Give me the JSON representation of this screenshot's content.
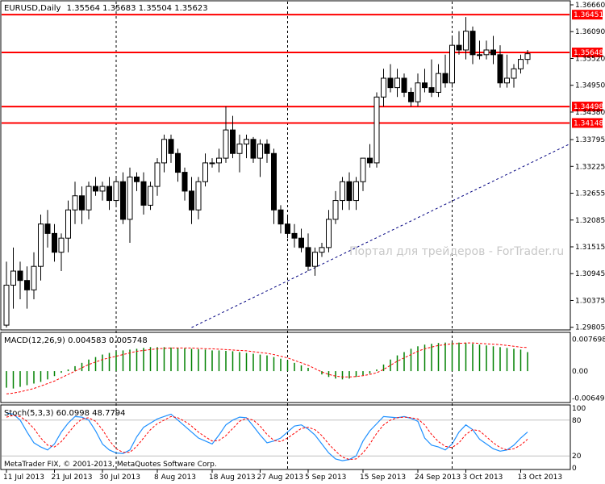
{
  "chart_data": [
    {
      "type": "candlestick",
      "symbol_header": "EURUSD,Daily",
      "ohlc_header": "1.35564 1.35683 1.35504 1.35623",
      "ylim": [
        1.298,
        1.3666
      ],
      "y_ticks": [
        "1.36660",
        "1.36090",
        "1.35520",
        "1.34950",
        "1.34380",
        "1.33795",
        "1.33225",
        "1.32655",
        "1.32085",
        "1.31515",
        "1.30945",
        "1.30375",
        "1.29805"
      ],
      "dates": [
        "11 Jul 2013",
        "21 Jul 2013",
        "30 Jul 2013",
        "8 Aug 2013",
        "18 Aug 2013",
        "27 Aug 2013",
        "5 Sep 2013",
        "15 Sep 2013",
        "24 Sep 2013",
        "3 Oct 2013",
        "13 Oct 2013"
      ],
      "levels": [
        {
          "label": "1.36451",
          "value": 1.36451
        },
        {
          "label": "1.35648",
          "value": 1.35648
        },
        {
          "label": "1.34498",
          "value": 1.34498
        },
        {
          "label": "1.34148",
          "value": 1.34148
        }
      ],
      "trendline": [
        [
          1.298,
          1.337
        ]
      ],
      "watermark": "Портал для трейдеров - ForTrader.ru",
      "candles": [
        [
          1.2985,
          1.312,
          1.298,
          1.307
        ],
        [
          1.307,
          1.315,
          1.302,
          1.31
        ],
        [
          1.31,
          1.312,
          1.304,
          1.308
        ],
        [
          1.308,
          1.311,
          1.302,
          1.306
        ],
        [
          1.306,
          1.314,
          1.304,
          1.311
        ],
        [
          1.311,
          1.322,
          1.308,
          1.32
        ],
        [
          1.32,
          1.323,
          1.315,
          1.318
        ],
        [
          1.318,
          1.32,
          1.312,
          1.314
        ],
        [
          1.314,
          1.318,
          1.31,
          1.317
        ],
        [
          1.317,
          1.325,
          1.314,
          1.323
        ],
        [
          1.323,
          1.329,
          1.32,
          1.326
        ],
        [
          1.326,
          1.328,
          1.32,
          1.323
        ],
        [
          1.323,
          1.329,
          1.321,
          1.328
        ],
        [
          1.328,
          1.33,
          1.326,
          1.327
        ],
        [
          1.327,
          1.329,
          1.325,
          1.328
        ],
        [
          1.328,
          1.33,
          1.323,
          1.325
        ],
        [
          1.325,
          1.33,
          1.324,
          1.329
        ],
        [
          1.329,
          1.331,
          1.32,
          1.321
        ],
        [
          1.321,
          1.332,
          1.316,
          1.33
        ],
        [
          1.33,
          1.331,
          1.327,
          1.329
        ],
        [
          1.329,
          1.331,
          1.322,
          1.324
        ],
        [
          1.324,
          1.329,
          1.323,
          1.328
        ],
        [
          1.328,
          1.334,
          1.326,
          1.333
        ],
        [
          1.333,
          1.339,
          1.331,
          1.338
        ],
        [
          1.338,
          1.339,
          1.333,
          1.335
        ],
        [
          1.335,
          1.336,
          1.329,
          1.331
        ],
        [
          1.331,
          1.332,
          1.325,
          1.327
        ],
        [
          1.327,
          1.33,
          1.32,
          1.323
        ],
        [
          1.323,
          1.33,
          1.321,
          1.329
        ],
        [
          1.329,
          1.335,
          1.328,
          1.333
        ],
        [
          1.333,
          1.334,
          1.332,
          1.333
        ],
        [
          1.333,
          1.336,
          1.331,
          1.334
        ],
        [
          1.334,
          1.345,
          1.333,
          1.34
        ],
        [
          1.34,
          1.343,
          1.334,
          1.335
        ],
        [
          1.335,
          1.339,
          1.331,
          1.337
        ],
        [
          1.337,
          1.339,
          1.334,
          1.338
        ],
        [
          1.338,
          1.3385,
          1.333,
          1.334
        ],
        [
          1.334,
          1.338,
          1.33,
          1.337
        ],
        [
          1.337,
          1.338,
          1.333,
          1.335
        ],
        [
          1.335,
          1.336,
          1.32,
          1.323
        ],
        [
          1.323,
          1.324,
          1.318,
          1.32
        ],
        [
          1.32,
          1.322,
          1.317,
          1.318
        ],
        [
          1.318,
          1.32,
          1.315,
          1.317
        ],
        [
          1.317,
          1.319,
          1.314,
          1.315
        ],
        [
          1.315,
          1.318,
          1.31,
          1.311
        ],
        [
          1.311,
          1.315,
          1.309,
          1.314
        ],
        [
          1.314,
          1.316,
          1.313,
          1.315
        ],
        [
          1.315,
          1.323,
          1.314,
          1.321
        ],
        [
          1.321,
          1.327,
          1.32,
          1.325
        ],
        [
          1.325,
          1.33,
          1.323,
          1.329
        ],
        [
          1.329,
          1.331,
          1.323,
          1.325
        ],
        [
          1.325,
          1.33,
          1.323,
          1.329
        ],
        [
          1.329,
          1.334,
          1.327,
          1.334
        ],
        [
          1.334,
          1.337,
          1.332,
          1.333
        ],
        [
          1.333,
          1.348,
          1.332,
          1.347
        ],
        [
          1.347,
          1.353,
          1.345,
          1.351
        ],
        [
          1.351,
          1.354,
          1.348,
          1.349
        ],
        [
          1.349,
          1.353,
          1.347,
          1.351
        ],
        [
          1.351,
          1.352,
          1.347,
          1.348
        ],
        [
          1.348,
          1.349,
          1.345,
          1.346
        ],
        [
          1.346,
          1.352,
          1.345,
          1.35
        ],
        [
          1.35,
          1.353,
          1.348,
          1.349
        ],
        [
          1.349,
          1.355,
          1.347,
          1.348
        ],
        [
          1.348,
          1.354,
          1.347,
          1.352
        ],
        [
          1.352,
          1.356,
          1.349,
          1.35
        ],
        [
          1.35,
          1.36,
          1.349,
          1.358
        ],
        [
          1.358,
          1.361,
          1.356,
          1.357
        ],
        [
          1.357,
          1.364,
          1.355,
          1.361
        ],
        [
          1.361,
          1.362,
          1.354,
          1.356
        ],
        [
          1.356,
          1.359,
          1.355,
          1.356
        ],
        [
          1.356,
          1.359,
          1.355,
          1.357
        ],
        [
          1.357,
          1.36,
          1.354,
          1.356
        ],
        [
          1.356,
          1.358,
          1.349,
          1.35
        ],
        [
          1.35,
          1.356,
          1.349,
          1.351
        ],
        [
          1.351,
          1.354,
          1.349,
          1.353
        ],
        [
          1.353,
          1.356,
          1.352,
          1.355
        ],
        [
          1.355,
          1.357,
          1.354,
          1.3562
        ]
      ]
    },
    {
      "type": "bar",
      "title": "MACD(12,26,9) 0.004583 0.005748",
      "ylim": [
        -0.007,
        0.0082
      ],
      "y_ticks": [
        "0.007698",
        "0.00",
        "-0.006497"
      ],
      "series": [
        {
          "name": "MACD",
          "values": [
            -0.004,
            -0.0042,
            -0.0038,
            -0.0034,
            -0.003,
            -0.0026,
            -0.002,
            -0.0012,
            -0.0004,
            0.0004,
            0.0012,
            0.002,
            0.0028,
            0.0034,
            0.004,
            0.0044,
            0.0048,
            0.005,
            0.0052,
            0.0054,
            0.0056,
            0.0058,
            0.0058,
            0.0058,
            0.0057,
            0.0056,
            0.0055,
            0.0054,
            0.0053,
            0.0052,
            0.005,
            0.005,
            0.0049,
            0.0048,
            0.0046,
            0.0044,
            0.0042,
            0.004,
            0.0038,
            0.0034,
            0.003,
            0.0026,
            0.002,
            0.0014,
            0.0008,
            0.0,
            -0.0008,
            -0.0014,
            -0.0018,
            -0.002,
            -0.0018,
            -0.0014,
            -0.001,
            -0.0006,
            0.0004,
            0.0016,
            0.0028,
            0.0038,
            0.0046,
            0.0054,
            0.006,
            0.0064,
            0.0066,
            0.0068,
            0.0069,
            0.0069,
            0.0069,
            0.0068,
            0.0066,
            0.0064,
            0.0062,
            0.006,
            0.0058,
            0.0056,
            0.0054,
            0.0052,
            0.0046
          ]
        },
        {
          "name": "Signal",
          "values": [
            -0.0055,
            -0.0053,
            -0.005,
            -0.0046,
            -0.0042,
            -0.0036,
            -0.003,
            -0.0024,
            -0.0016,
            -0.0008,
            0.0,
            0.0008,
            0.0016,
            0.0022,
            0.0028,
            0.0032,
            0.0036,
            0.004,
            0.0044,
            0.0048,
            0.005,
            0.0052,
            0.0054,
            0.0055,
            0.0056,
            0.0056,
            0.0056,
            0.0056,
            0.0055,
            0.0054,
            0.0054,
            0.0053,
            0.0052,
            0.0051,
            0.005,
            0.0049,
            0.0047,
            0.0045,
            0.0043,
            0.004,
            0.0036,
            0.0032,
            0.0026,
            0.002,
            0.0014,
            0.0006,
            -0.0002,
            -0.0008,
            -0.0012,
            -0.0014,
            -0.0014,
            -0.0013,
            -0.0011,
            -0.0008,
            -0.0004,
            0.0004,
            0.0014,
            0.0024,
            0.0032,
            0.004,
            0.0048,
            0.0054,
            0.0058,
            0.0062,
            0.0064,
            0.0066,
            0.0067,
            0.0068,
            0.0068,
            0.0067,
            0.0066,
            0.0065,
            0.0064,
            0.0062,
            0.006,
            0.0058,
            0.0057
          ]
        }
      ]
    },
    {
      "type": "line",
      "title": "Stoch(5,3,3) 60.0998 48.7794",
      "ylim": [
        0,
        100
      ],
      "y_ticks": [
        "100",
        "80",
        "20",
        "0"
      ],
      "series": [
        {
          "name": "%K",
          "values": [
            92,
            90,
            80,
            60,
            42,
            35,
            30,
            40,
            60,
            75,
            86,
            85,
            80,
            62,
            40,
            30,
            25,
            24,
            30,
            52,
            68,
            75,
            82,
            86,
            90,
            80,
            70,
            60,
            50,
            45,
            40,
            55,
            72,
            80,
            85,
            84,
            70,
            55,
            42,
            45,
            50,
            60,
            70,
            72,
            65,
            55,
            40,
            25,
            15,
            12,
            14,
            20,
            45,
            62,
            74,
            86,
            85,
            84,
            86,
            83,
            78,
            50,
            38,
            35,
            30,
            40,
            60,
            72,
            64,
            48,
            40,
            32,
            28,
            30,
            38,
            50,
            60
          ]
        },
        {
          "name": "%D",
          "values": [
            85,
            88,
            86,
            78,
            66,
            50,
            38,
            35,
            44,
            58,
            72,
            82,
            84,
            78,
            64,
            46,
            32,
            26,
            26,
            36,
            50,
            64,
            74,
            80,
            86,
            84,
            78,
            70,
            60,
            52,
            45,
            46,
            54,
            66,
            78,
            83,
            80,
            70,
            56,
            46,
            44,
            50,
            58,
            66,
            68,
            64,
            54,
            40,
            28,
            18,
            14,
            15,
            25,
            40,
            58,
            72,
            80,
            84,
            85,
            84,
            82,
            72,
            56,
            44,
            36,
            34,
            42,
            56,
            64,
            62,
            52,
            42,
            34,
            30,
            32,
            38,
            48
          ]
        }
      ]
    }
  ],
  "watermark": "Портал для трейдеров - ForTrader.ru",
  "copyright": "MetaTrader FIX, © 2001-2013, MetaQuotes Software Corp.",
  "colors": {
    "bull": "#ffffff",
    "bear": "#000000",
    "level": "#ff0000",
    "trend": "#000080",
    "macd_hist": "#008000",
    "signal": "#ff0000",
    "stoch_k": "#1e90ff",
    "stoch_d": "#ff0000",
    "grid": "#000000"
  }
}
